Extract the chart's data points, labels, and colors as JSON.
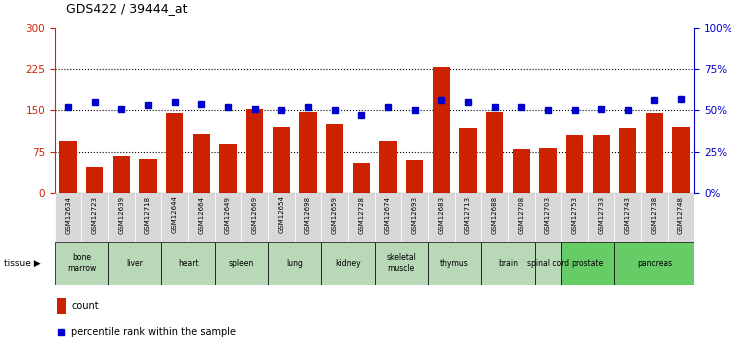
{
  "title": "GDS422 / 39444_at",
  "samples": [
    "GSM12634",
    "GSM12723",
    "GSM12639",
    "GSM12718",
    "GSM12644",
    "GSM12664",
    "GSM12649",
    "GSM12669",
    "GSM12654",
    "GSM12698",
    "GSM12659",
    "GSM12728",
    "GSM12674",
    "GSM12693",
    "GSM12683",
    "GSM12713",
    "GSM12688",
    "GSM12708",
    "GSM12703",
    "GSM12753",
    "GSM12733",
    "GSM12743",
    "GSM12738",
    "GSM12748"
  ],
  "counts": [
    95,
    47,
    68,
    62,
    145,
    107,
    90,
    152,
    120,
    148,
    125,
    55,
    95,
    60,
    228,
    118,
    148,
    80,
    82,
    105,
    105,
    118,
    145,
    120
  ],
  "percentiles": [
    52,
    55,
    51,
    53,
    55,
    54,
    52,
    51,
    50,
    52,
    50,
    47,
    52,
    50,
    56,
    55,
    52,
    52,
    50,
    50,
    51,
    50,
    56,
    57
  ],
  "tissues": [
    {
      "name": "bone\nmarrow",
      "start": 0,
      "end": 2,
      "color": "#b8d8b8"
    },
    {
      "name": "liver",
      "start": 2,
      "end": 4,
      "color": "#b8d8b8"
    },
    {
      "name": "heart",
      "start": 4,
      "end": 6,
      "color": "#b8d8b8"
    },
    {
      "name": "spleen",
      "start": 6,
      "end": 8,
      "color": "#b8d8b8"
    },
    {
      "name": "lung",
      "start": 8,
      "end": 10,
      "color": "#b8d8b8"
    },
    {
      "name": "kidney",
      "start": 10,
      "end": 12,
      "color": "#b8d8b8"
    },
    {
      "name": "skeletal\nmuscle",
      "start": 12,
      "end": 14,
      "color": "#b8d8b8"
    },
    {
      "name": "thymus",
      "start": 14,
      "end": 16,
      "color": "#b8d8b8"
    },
    {
      "name": "brain",
      "start": 16,
      "end": 18,
      "color": "#b8d8b8"
    },
    {
      "name": "spinal cord",
      "start": 18,
      "end": 19,
      "color": "#b8d8b8"
    },
    {
      "name": "prostate",
      "start": 19,
      "end": 21,
      "color": "#66cc66"
    },
    {
      "name": "pancreas",
      "start": 21,
      "end": 24,
      "color": "#66cc66"
    }
  ],
  "bar_color": "#cc2200",
  "dot_color": "#0000cc",
  "ylim_left": [
    0,
    300
  ],
  "ylim_right": [
    0,
    100
  ],
  "yticks_left": [
    0,
    75,
    150,
    225,
    300
  ],
  "yticks_right": [
    0,
    25,
    50,
    75,
    100
  ],
  "hlines": [
    75,
    150,
    225
  ],
  "xticklabel_bg": "#d8d8d8",
  "background_color": "#ffffff"
}
